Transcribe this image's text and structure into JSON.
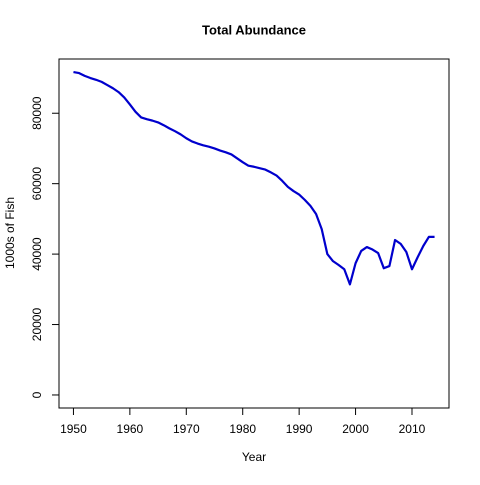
{
  "chart_data": {
    "type": "line",
    "title": "Total Abundance",
    "x_label": "Year",
    "y_label": "1000s of Fish",
    "x": [
      1950,
      1951,
      1952,
      1953,
      1954,
      1955,
      1956,
      1957,
      1958,
      1959,
      1960,
      1961,
      1962,
      1963,
      1964,
      1965,
      1966,
      1967,
      1968,
      1969,
      1970,
      1971,
      1972,
      1973,
      1974,
      1975,
      1976,
      1977,
      1978,
      1979,
      1980,
      1981,
      1982,
      1983,
      1984,
      1985,
      1986,
      1987,
      1988,
      1989,
      1990,
      1991,
      1992,
      1993,
      1994,
      1995,
      1996,
      1997,
      1998,
      1999,
      2000,
      2001,
      2002,
      2003,
      2004,
      2005,
      2006,
      2007,
      2008,
      2009,
      2010,
      2011,
      2012,
      2013,
      2014
    ],
    "series": [
      {
        "name": "Total Abundance",
        "color": "#0000cd",
        "values": [
          91700,
          91400,
          90600,
          90000,
          89500,
          88900,
          88000,
          87100,
          86000,
          84500,
          82500,
          80400,
          78800,
          78300,
          77900,
          77400,
          76600,
          75700,
          74900,
          74000,
          72900,
          72000,
          71400,
          70900,
          70500,
          70000,
          69400,
          68900,
          68300,
          67200,
          66100,
          65100,
          64800,
          64400,
          64000,
          63200,
          62300,
          60800,
          59100,
          57900,
          56900,
          55400,
          53700,
          51400,
          47100,
          40000,
          38000,
          36900,
          35700,
          31400,
          37400,
          40900,
          42000,
          41300,
          40300,
          36000,
          36600,
          44000,
          42900,
          40600,
          35700,
          39100,
          42300,
          44900,
          44900
        ]
      }
    ],
    "xlim": [
      1947.44,
      2016.56
    ],
    "xticks": [
      1950,
      1960,
      1970,
      1980,
      1990,
      2000,
      2010
    ],
    "ylim": [
      -3700,
      95400
    ],
    "yticks": [
      0,
      20000,
      40000,
      60000,
      80000
    ]
  }
}
